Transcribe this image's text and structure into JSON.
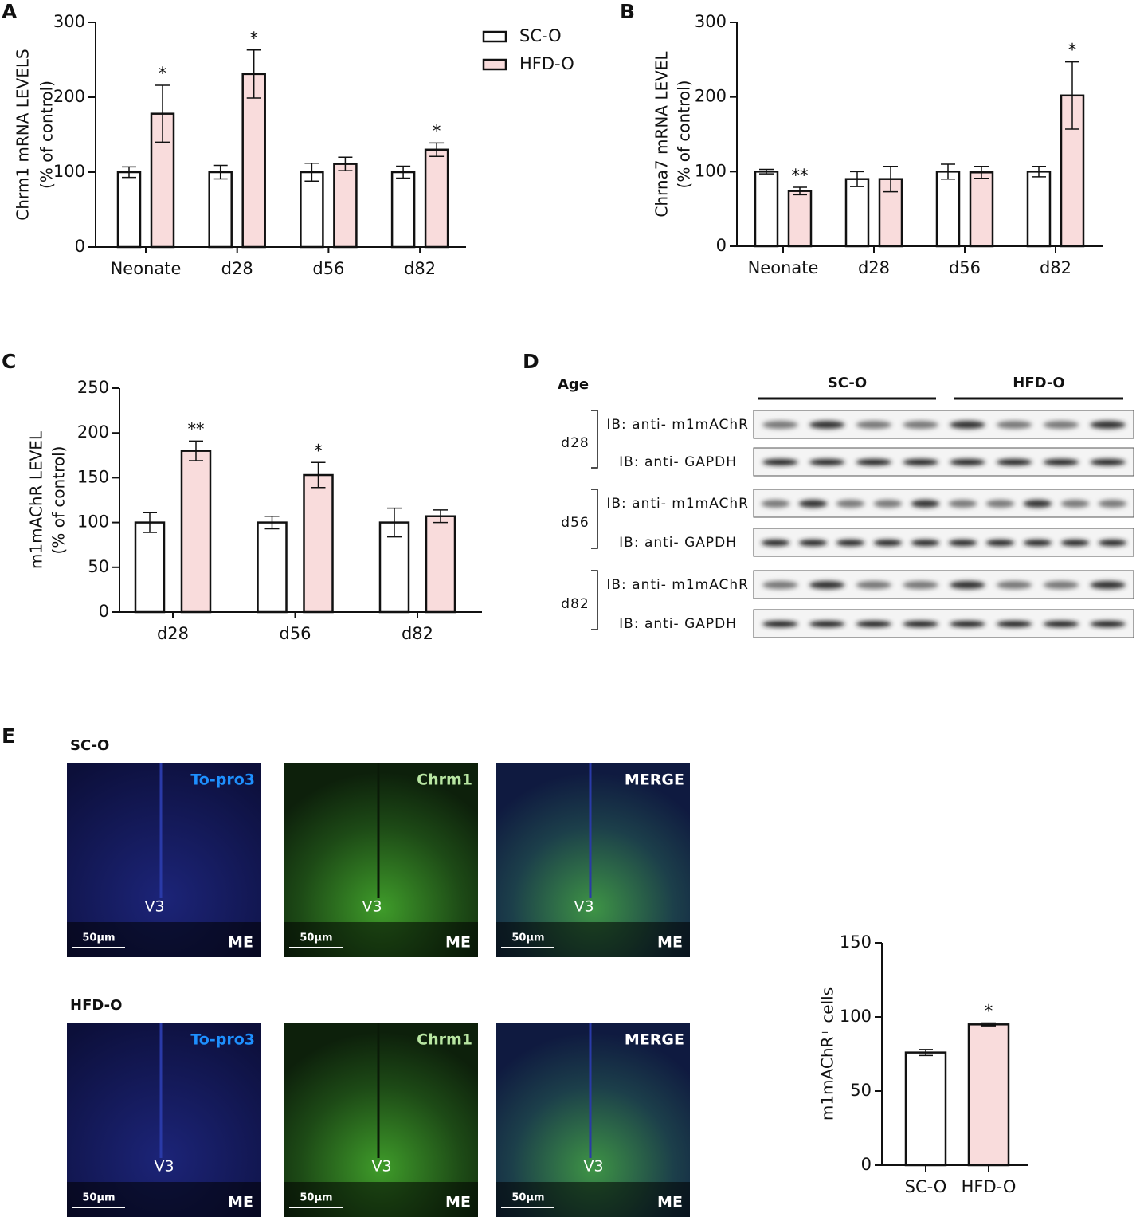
{
  "panels": [
    "A",
    "B",
    "C",
    "D",
    "E"
  ],
  "chart_data": [
    {
      "type": "bar",
      "ylabel": [
        "Chrm1 mRNA LEVELS",
        "(% of control)"
      ],
      "categories": [
        "Neonate",
        "d28",
        "d56",
        "d82"
      ],
      "series": [
        {
          "name": "SC-O",
          "color": "#ffffff",
          "values": [
            100,
            100,
            100,
            100
          ],
          "errors": [
            7,
            9,
            12,
            8
          ],
          "annotations": [
            null,
            null,
            null,
            null
          ]
        },
        {
          "name": "HFD-O",
          "color": "#f9dcdc",
          "values": [
            178,
            231,
            111,
            130
          ],
          "errors": [
            38,
            32,
            9,
            9
          ],
          "annotations": [
            "*",
            "*",
            null,
            "*"
          ]
        }
      ],
      "ylim": [
        0,
        300
      ],
      "yticks": [
        0,
        100,
        200,
        300
      ],
      "legend": "top-right"
    },
    {
      "type": "bar",
      "ylabel": [
        "Chrna7 mRNA LEVEL",
        "(% of control)"
      ],
      "categories": [
        "Neonate",
        "d28",
        "d56",
        "d82"
      ],
      "series": [
        {
          "color": "#ffffff",
          "values": [
            100,
            90,
            100,
            100
          ],
          "errors": [
            3,
            10,
            10,
            7
          ],
          "annotations": [
            null,
            null,
            null,
            null
          ]
        },
        {
          "color": "#f9dcdc",
          "values": [
            74,
            90,
            99,
            202
          ],
          "errors": [
            5,
            17,
            8,
            45
          ],
          "annotations": [
            "**",
            null,
            null,
            "*"
          ]
        }
      ],
      "ylim": [
        0,
        300
      ],
      "yticks": [
        0,
        100,
        200,
        300
      ]
    },
    {
      "type": "bar",
      "ylabel": [
        "m1mAChR LEVEL",
        "(% of control)"
      ],
      "categories": [
        "d28",
        "d56",
        "d82"
      ],
      "series": [
        {
          "color": "#ffffff",
          "values": [
            100,
            100,
            100
          ],
          "errors": [
            11,
            7,
            16
          ],
          "annotations": [
            null,
            null,
            null
          ]
        },
        {
          "color": "#f9dcdc",
          "values": [
            180,
            153,
            107
          ],
          "errors": [
            11,
            14,
            7
          ],
          "annotations": [
            "**",
            "*",
            null
          ]
        }
      ],
      "ylim": [
        0,
        250
      ],
      "yticks": [
        0,
        50,
        100,
        150,
        200,
        250
      ]
    },
    {
      "type": "bar",
      "ylabel": [
        "m1mAChR⁺ cells"
      ],
      "categories": [
        "SC-O",
        "HFD-O"
      ],
      "values": [
        76,
        95
      ],
      "errors": [
        2,
        1
      ],
      "colors": [
        "#ffffff",
        "#f9dcdc"
      ],
      "annotations": [
        null,
        "*"
      ],
      "ylim": [
        0,
        150
      ],
      "yticks": [
        0,
        50,
        100,
        150
      ]
    }
  ],
  "blot": {
    "age_label": "Age",
    "groups": [
      "SC-O",
      "HFD-O"
    ],
    "rows": [
      {
        "age": "d28",
        "bands": [
          "IB: anti- m1mAChR",
          "IB: anti- GAPDH"
        ]
      },
      {
        "age": "d56",
        "bands": [
          "IB: anti- m1mAChR",
          "IB: anti- GAPDH"
        ]
      },
      {
        "age": "d82",
        "bands": [
          "IB: anti- m1mAChR",
          "IB: anti- GAPDH"
        ]
      }
    ]
  },
  "images": {
    "rows": [
      {
        "label": "SC-O",
        "panels": [
          "To-pro3",
          "Chrm1",
          "MERGE"
        ]
      },
      {
        "label": "HFD-O",
        "panels": [
          "To-pro3",
          "Chrm1",
          "MERGE"
        ]
      }
    ],
    "ventricle": "V3",
    "eminence": "ME",
    "scale": "50µm"
  }
}
